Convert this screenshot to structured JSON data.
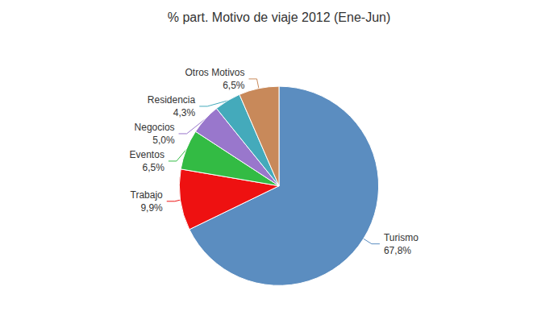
{
  "chart_data": {
    "type": "pie",
    "title": "% part. Motivo de viaje 2012 (Ene-Jun)",
    "categories": [
      "Turismo",
      "Trabajo",
      "Eventos",
      "Negocios",
      "Residencia",
      "Otros Motivos"
    ],
    "values": [
      67.8,
      9.9,
      6.5,
      5.0,
      4.3,
      6.5
    ],
    "value_labels": [
      "67,8%",
      "9,9%",
      "6,5%",
      "5,0%",
      "4,3%",
      "6,5%"
    ],
    "colors": [
      "#5b8dc0",
      "#ee1111",
      "#33bb44",
      "#9977cc",
      "#44aabb",
      "#c8895a"
    ],
    "data_labels": true
  }
}
